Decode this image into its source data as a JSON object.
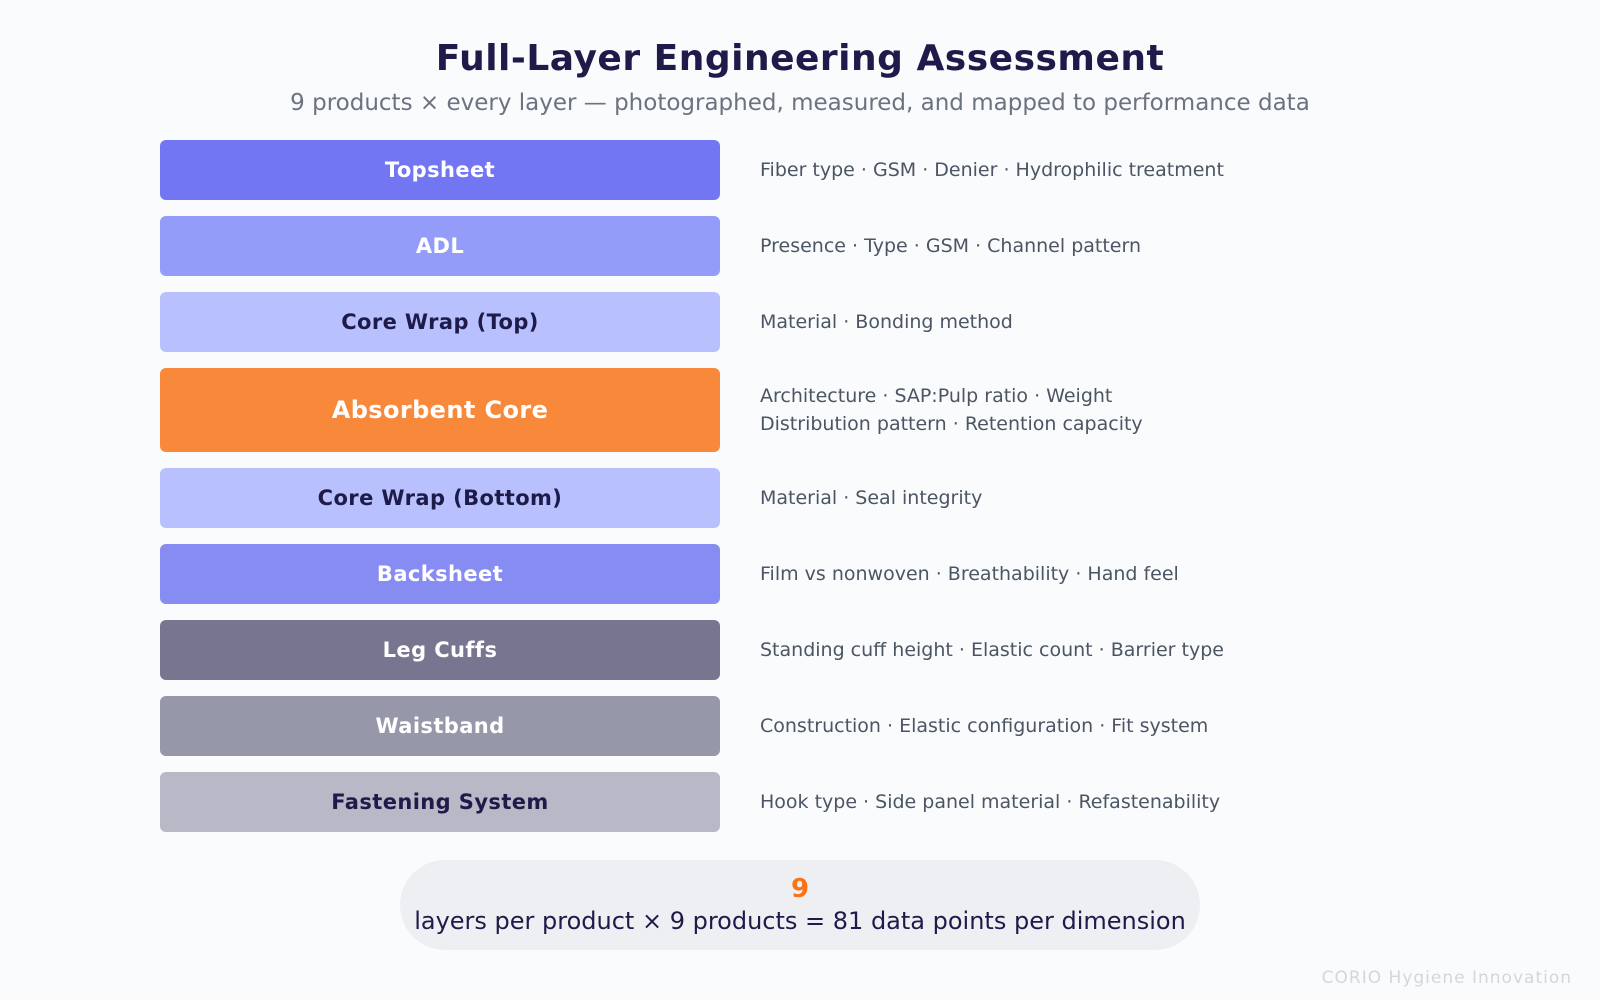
{
  "header": {
    "title": "Full-Layer Engineering Assessment",
    "subtitle": "9 products × every layer — photographed, measured, and mapped to performance data"
  },
  "layers": [
    {
      "name": "Topsheet",
      "details": [
        "Fiber type · GSM · Denier · Hydrophilic treatment"
      ],
      "color": "#7276f2",
      "text_color": "#ffffff"
    },
    {
      "name": "ADL",
      "details": [
        "Presence · Type · GSM · Channel pattern"
      ],
      "color": "#939cf8",
      "text_color": "#ffffff"
    },
    {
      "name": "Core Wrap (Top)",
      "details": [
        "Material · Bonding method"
      ],
      "color": "#b8c1fd",
      "text_color": "#1e1b4b"
    },
    {
      "name": "Absorbent Core",
      "details": [
        "Architecture · SAP:Pulp ratio · Weight",
        "Distribution pattern · Retention capacity"
      ],
      "color": "#f8883a",
      "text_color": "#ffffff"
    },
    {
      "name": "Core Wrap (Bottom)",
      "details": [
        "Material · Seal integrity"
      ],
      "color": "#b8c1fd",
      "text_color": "#1e1b4b"
    },
    {
      "name": "Backsheet",
      "details": [
        "Film vs nonwoven · Breathability · Hand feel"
      ],
      "color": "#878cf2",
      "text_color": "#ffffff"
    },
    {
      "name": "Leg Cuffs",
      "details": [
        "Standing cuff height · Elastic count · Barrier type"
      ],
      "color": "#77758f",
      "text_color": "#ffffff"
    },
    {
      "name": "Waistband",
      "details": [
        "Construction · Elastic configuration · Fit system"
      ],
      "color": "#9797aa",
      "text_color": "#ffffff"
    },
    {
      "name": "Fastening System",
      "details": [
        "Hook type · Side panel material · Refastenability"
      ],
      "color": "#b8b8c6",
      "text_color": "#1e1b4b"
    }
  ],
  "summary": {
    "number": "9",
    "text": "layers per product × 9 products = 81 data points per dimension"
  },
  "footer": {
    "brand": "CORIO Hygiene Innovation"
  }
}
